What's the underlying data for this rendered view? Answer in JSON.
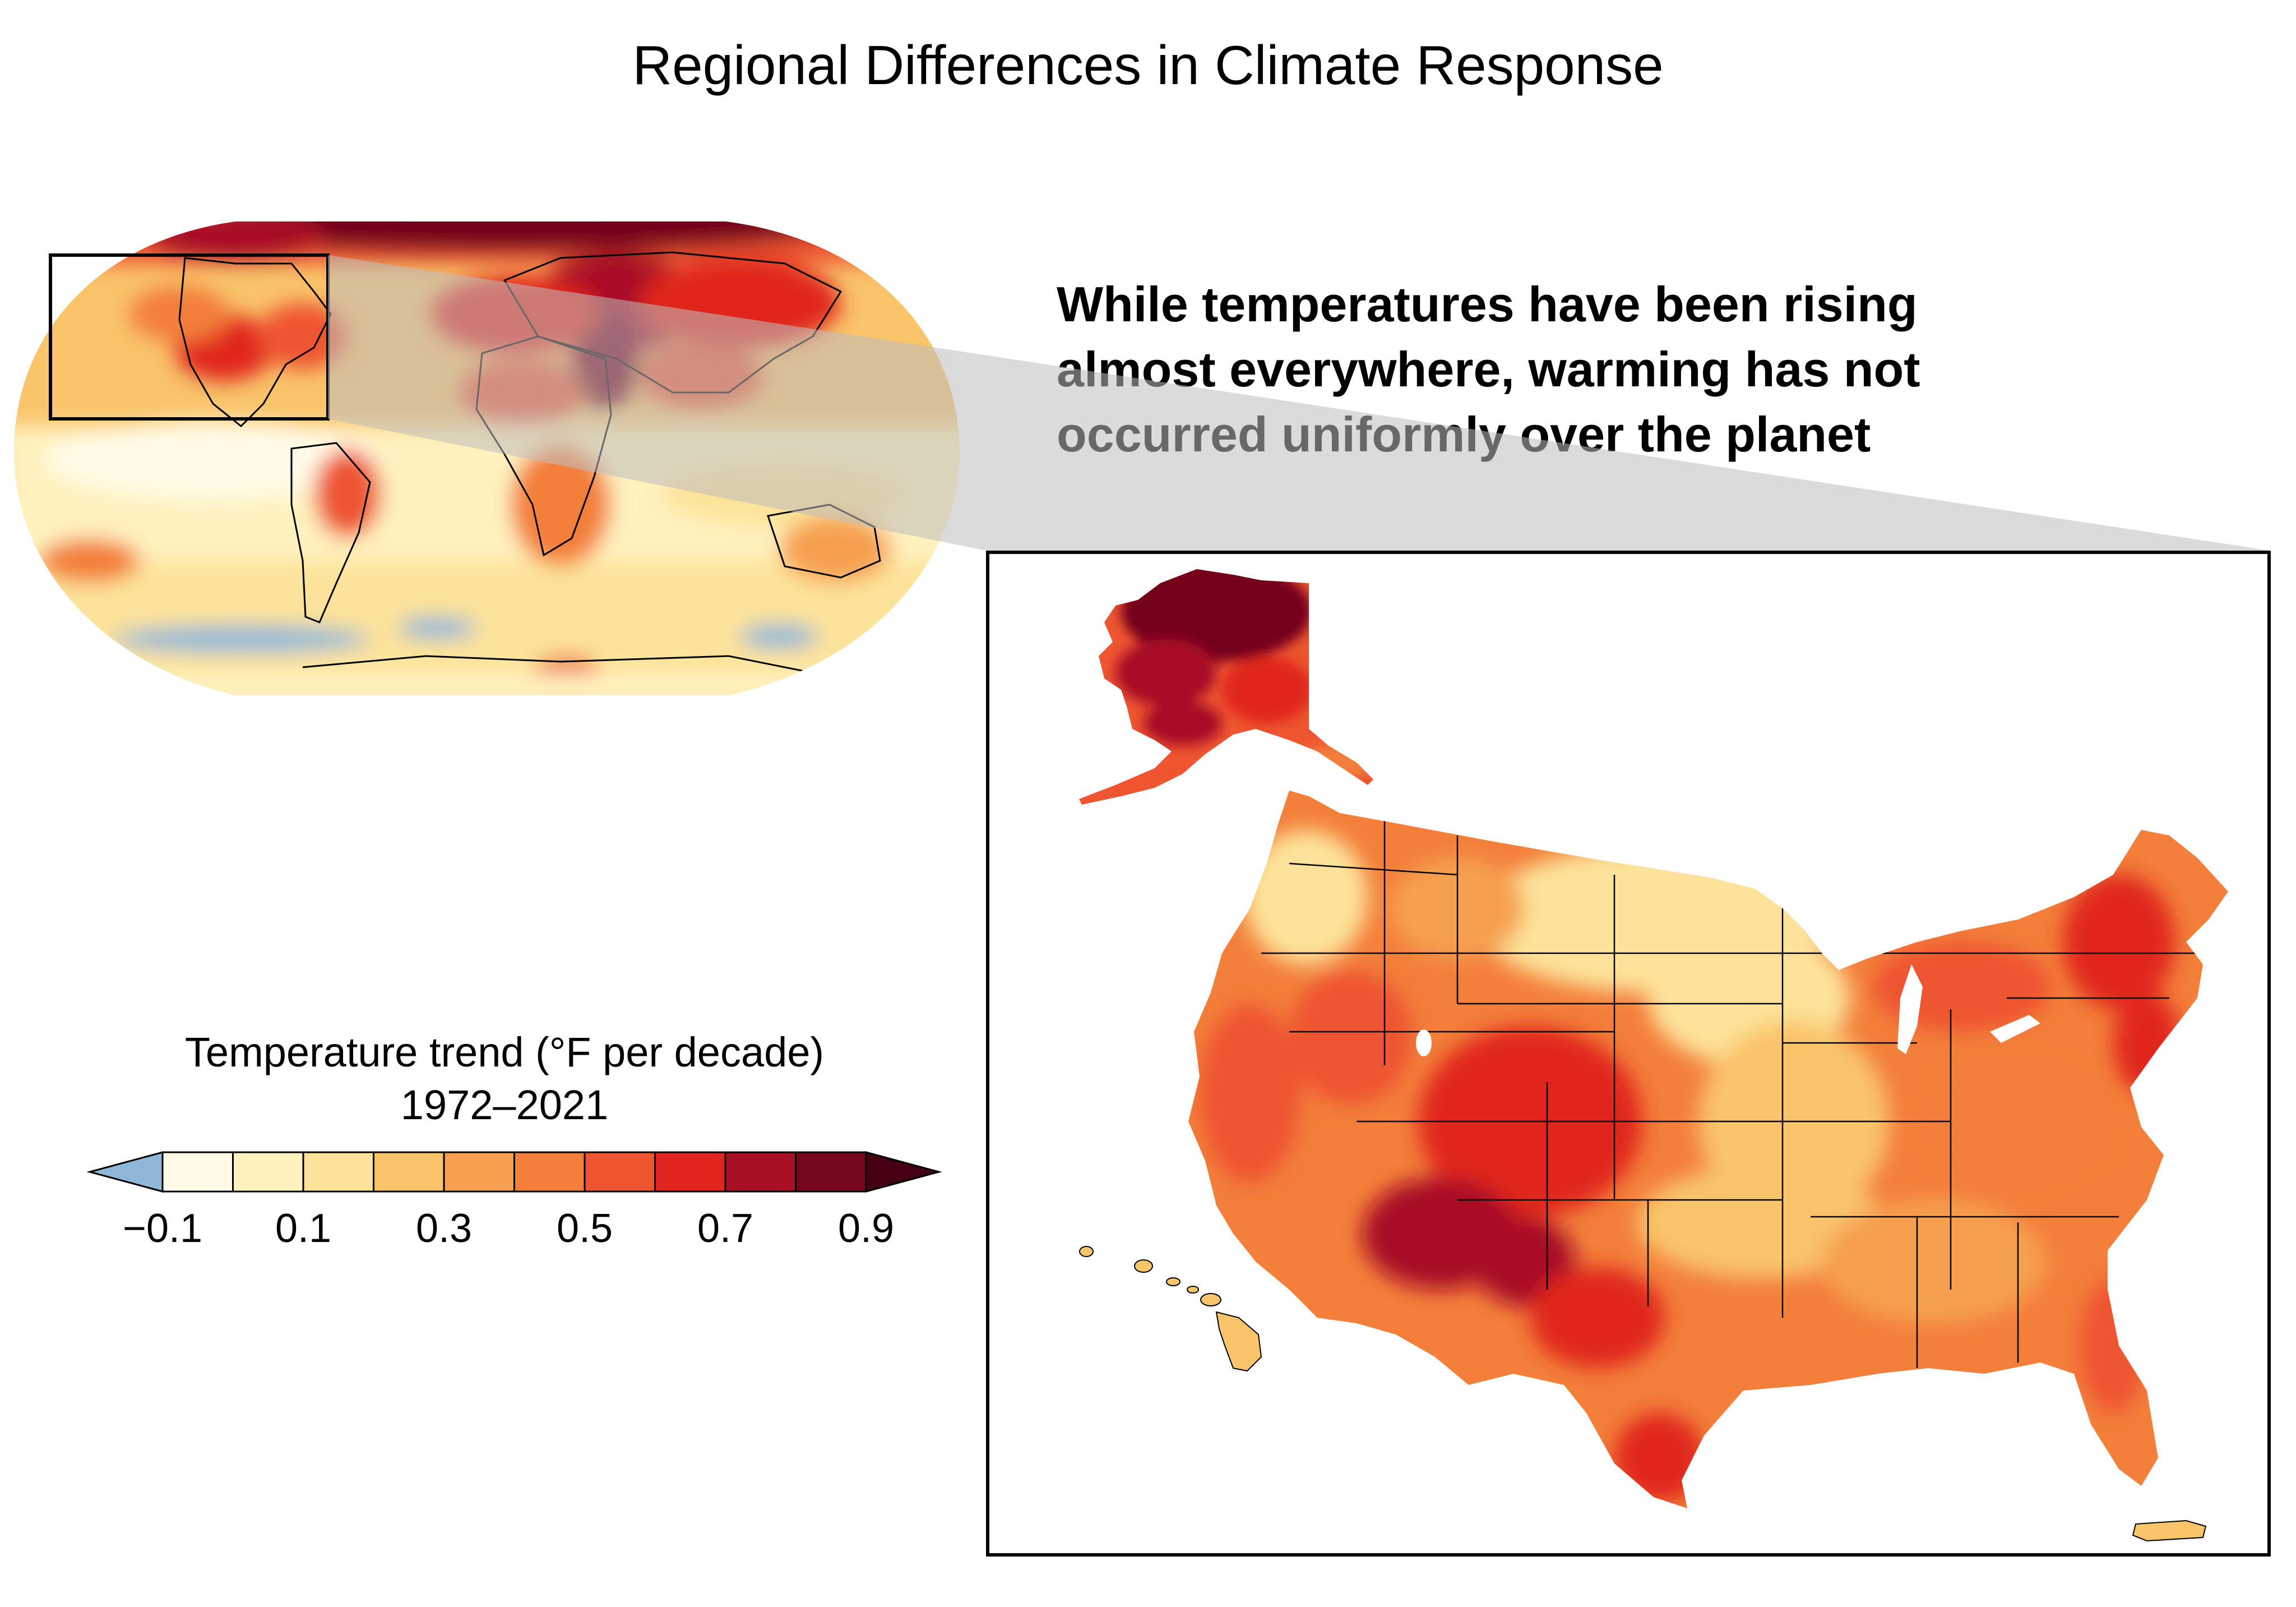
{
  "title": "Regional Differences in Climate Response",
  "callout": {
    "line1": "While temperatures have been rising",
    "line2": "almost everywhere, warming has not",
    "line3": "occurred uniformly over the planet"
  },
  "legend": {
    "title_line1": "Temperature trend (°F per decade)",
    "title_line2": "1972–2021",
    "ticks": [
      "−0.1",
      "0.1",
      "0.3",
      "0.5",
      "0.7",
      "0.9"
    ],
    "colors": {
      "under": "#8fb8d8",
      "bins": [
        "#fffbe6",
        "#fff2bf",
        "#fde39a",
        "#f9c46a",
        "#f6a04f",
        "#f37f3a",
        "#ee5530",
        "#e0251f",
        "#a90f25",
        "#75061c"
      ],
      "over": "#450012"
    }
  },
  "maps": {
    "global": "Global temperature trend map",
    "us": "United States temperature trend map"
  }
}
